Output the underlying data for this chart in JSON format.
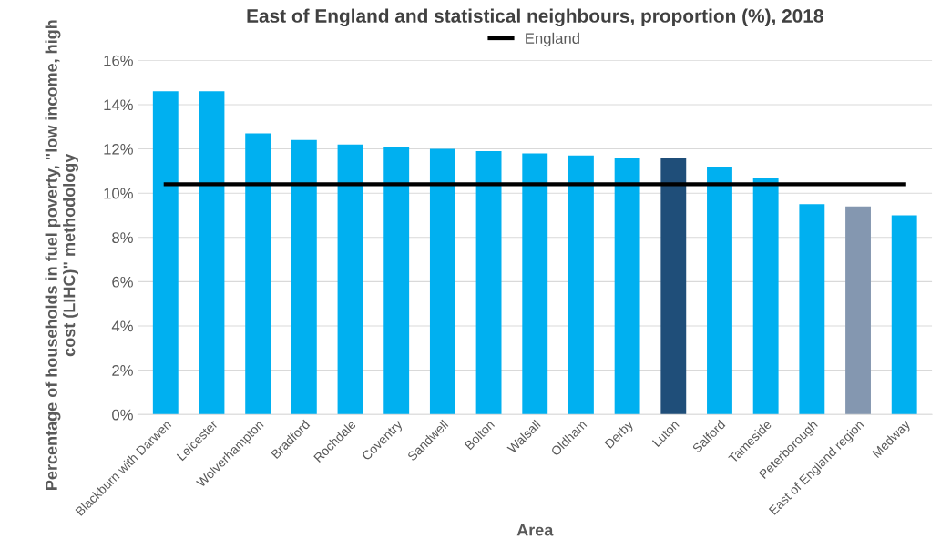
{
  "chart_data": {
    "type": "bar",
    "title": "East of England and statistical neighbours, proportion (%), 2018",
    "xlabel": "Area",
    "ylabel": "Percentage of households in fuel poverty, \"low income, high cost (LIHC)\" methodology",
    "categories": [
      "Blackburn with Darwen",
      "Leicester",
      "Wolverhampton",
      "Bradford",
      "Rochdale",
      "Coventry",
      "Sandwell",
      "Bolton",
      "Walsall",
      "Oldham",
      "Derby",
      "Luton",
      "Salford",
      "Tameside",
      "Peterborough",
      "East of England region",
      "Medway"
    ],
    "series": [
      {
        "values": [
          14.6,
          14.6,
          12.7,
          12.4,
          12.2,
          12.1,
          12.0,
          11.9,
          11.8,
          11.7,
          11.6,
          11.6,
          11.2,
          10.7,
          9.5,
          9.4,
          9.0
        ],
        "colors": [
          "#00b0f0",
          "#00b0f0",
          "#00b0f0",
          "#00b0f0",
          "#00b0f0",
          "#00b0f0",
          "#00b0f0",
          "#00b0f0",
          "#00b0f0",
          "#00b0f0",
          "#00b0f0",
          "#1f4e79",
          "#00b0f0",
          "#00b0f0",
          "#00b0f0",
          "#8497b0",
          "#00b0f0"
        ]
      },
      {
        "type": "line",
        "name": "England",
        "color": "#000000",
        "values": [
          10.4,
          10.4,
          10.4,
          10.4,
          10.4,
          10.4,
          10.4,
          10.4,
          10.4,
          10.4,
          10.4,
          10.4,
          10.4,
          10.4,
          10.4,
          10.4,
          10.4
        ]
      }
    ],
    "ylim": [
      0,
      16
    ],
    "yticks": [
      {
        "value": 0,
        "label": "0%"
      },
      {
        "value": 2,
        "label": "2%"
      },
      {
        "value": 4,
        "label": "4%"
      },
      {
        "value": 6,
        "label": "6%"
      },
      {
        "value": 8,
        "label": "8%"
      },
      {
        "value": 10,
        "label": "10%"
      },
      {
        "value": 12,
        "label": "12%"
      },
      {
        "value": 14,
        "label": "14%"
      },
      {
        "value": 16,
        "label": "16%"
      }
    ],
    "grid": "y",
    "legend": "top",
    "marker": "none"
  }
}
